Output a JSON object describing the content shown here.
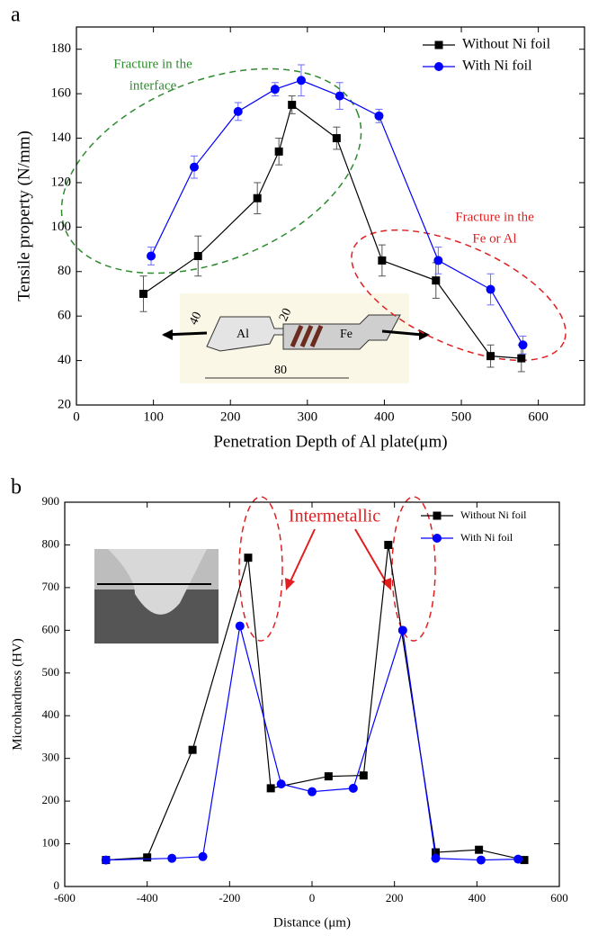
{
  "chart_data": [
    {
      "type": "line",
      "panel": "a",
      "xlabel": "Penetration Depth of Al plate(μm)",
      "ylabel": "Tensile property (N/mm)",
      "xlim": [
        0,
        660
      ],
      "xticks": [
        0,
        100,
        200,
        300,
        400,
        500,
        600
      ],
      "ylim": [
        20,
        190
      ],
      "yticks": [
        20,
        40,
        60,
        80,
        100,
        120,
        140,
        160,
        180
      ],
      "legend": "top-right",
      "series": [
        {
          "name": "Without Ni foil",
          "color": "#000000",
          "marker": "square",
          "x": [
            87,
            158,
            235,
            263,
            280,
            338,
            397,
            467,
            538,
            578
          ],
          "values": [
            70,
            87,
            113,
            134,
            155,
            140,
            85,
            76,
            42,
            41
          ],
          "errors": [
            8,
            9,
            7,
            6,
            4,
            5,
            7,
            8,
            5,
            6
          ]
        },
        {
          "name": "With Ni foil",
          "color": "#0000ff",
          "marker": "circle",
          "x": [
            97,
            153,
            210,
            258,
            292,
            342,
            393,
            470,
            538,
            580
          ],
          "values": [
            87,
            127,
            152,
            162,
            166,
            159,
            150,
            85,
            72,
            47
          ],
          "errors": [
            4,
            5,
            4,
            3,
            7,
            6,
            3,
            6,
            7,
            4
          ]
        }
      ],
      "annotations": [
        {
          "lines": [
            "Fracture in the",
            "interface"
          ],
          "color": "#2e8b2e"
        },
        {
          "lines": [
            "Fracture in the",
            "Fe or Al"
          ],
          "color": "#e02020"
        }
      ],
      "inset_labels": [
        "40",
        "20",
        "Al",
        "Fe",
        "80"
      ]
    },
    {
      "type": "line",
      "panel": "b",
      "xlabel": "Distance (μm)",
      "ylabel": "Microhardness (HV)",
      "xlim": [
        -600,
        600
      ],
      "xticks": [
        -600,
        -400,
        -200,
        0,
        200,
        400,
        600
      ],
      "ylim": [
        0,
        900
      ],
      "yticks": [
        0,
        100,
        200,
        300,
        400,
        500,
        600,
        700,
        800,
        900
      ],
      "legend": "top-right",
      "series": [
        {
          "name": "Without Ni foil",
          "color": "#000000",
          "marker": "square",
          "x": [
            -500,
            -400,
            -290,
            -155,
            -100,
            40,
            125,
            185,
            300,
            405,
            515
          ],
          "values": [
            62,
            68,
            320,
            770,
            230,
            258,
            260,
            800,
            80,
            86,
            62
          ]
        },
        {
          "name": "With Ni foil",
          "color": "#0000ff",
          "marker": "circle",
          "x": [
            -500,
            -340,
            -265,
            -175,
            -75,
            0,
            100,
            220,
            300,
            410,
            500
          ],
          "values": [
            62,
            66,
            70,
            610,
            240,
            222,
            230,
            600,
            66,
            62,
            64
          ]
        }
      ],
      "annotations": [
        {
          "lines": [
            "Intermetallic"
          ],
          "color": "#e02020"
        }
      ]
    }
  ]
}
